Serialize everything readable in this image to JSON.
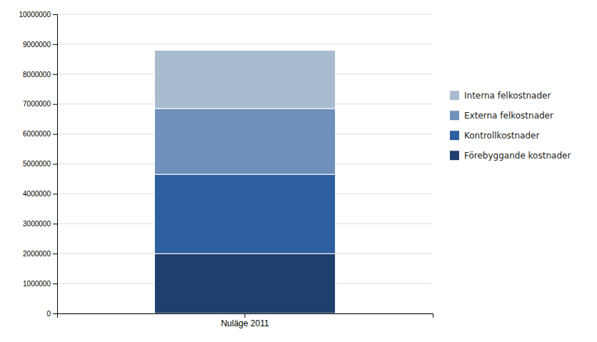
{
  "chart_data": {
    "type": "bar",
    "stacked": true,
    "categories": [
      "Nuläge 2011"
    ],
    "series": [
      {
        "name": "Förebyggande kostnader",
        "color": "#1F3F6E",
        "values": [
          2000000
        ]
      },
      {
        "name": "Kontrollkostnader",
        "color": "#2E5F9E",
        "values": [
          2650000
        ]
      },
      {
        "name": "Externa felkostnader",
        "color": "#6E90BB",
        "values": [
          2200000
        ]
      },
      {
        "name": "Interna felkostnader",
        "color": "#A8BBCF",
        "values": [
          1950000
        ]
      }
    ],
    "ylim": [
      0,
      10000000
    ],
    "yticks": [
      0,
      1000000,
      2000000,
      3000000,
      4000000,
      5000000,
      6000000,
      7000000,
      8000000,
      9000000,
      10000000
    ],
    "grid": true,
    "legend": "right"
  }
}
